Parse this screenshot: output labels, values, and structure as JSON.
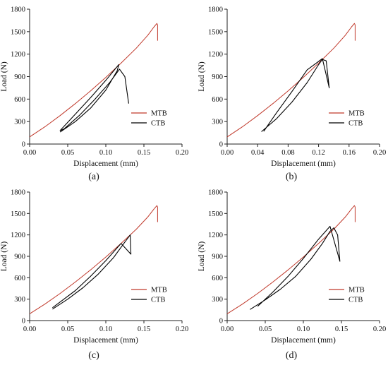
{
  "colors": {
    "MTB": "#c0392b",
    "CTB": "#000000"
  },
  "chart_data": [
    {
      "panel_label": "(a)",
      "type": "line",
      "xlabel": "Displacement (mm)",
      "ylabel": "Load (N)",
      "xlim": [
        0,
        0.2
      ],
      "ylim": [
        0,
        1800
      ],
      "x_ticks": [
        "0.00",
        "0.05",
        "0.10",
        "0.15",
        "0.20"
      ],
      "y_ticks": [
        "0",
        "300",
        "600",
        "900",
        "1200",
        "1500",
        "1800"
      ],
      "legend": {
        "position": "bottom-right",
        "entries": [
          "MTB",
          "CTB"
        ]
      },
      "series": [
        {
          "name": "MTB",
          "color": "#c0392b",
          "x": [
            0.0,
            0.02,
            0.04,
            0.06,
            0.08,
            0.1,
            0.12,
            0.14,
            0.155,
            0.163,
            0.167,
            0.168,
            0.168
          ],
          "y": [
            95,
            230,
            380,
            540,
            710,
            890,
            1080,
            1280,
            1450,
            1560,
            1610,
            1590,
            1380
          ]
        },
        {
          "name": "CTB",
          "color": "#000000",
          "x": [
            0.04,
            0.06,
            0.08,
            0.1,
            0.115,
            0.117,
            0.1,
            0.08,
            0.06,
            0.04,
            0.045,
            0.065,
            0.085,
            0.105,
            0.118,
            0.125,
            0.13
          ],
          "y": [
            160,
            300,
            480,
            720,
            980,
            1060,
            850,
            620,
            400,
            180,
            200,
            380,
            590,
            820,
            1000,
            900,
            540
          ]
        }
      ]
    },
    {
      "panel_label": "(b)",
      "type": "line",
      "xlabel": "Displacement (mm)",
      "ylabel": "Load (N)",
      "xlim": [
        0,
        0.2
      ],
      "ylim": [
        0,
        1800
      ],
      "x_ticks": [
        "0.00",
        "0.04",
        "0.08",
        "0.12",
        "0.16",
        "0.20"
      ],
      "y_ticks": [
        "0",
        "300",
        "600",
        "900",
        "1200",
        "1500",
        "1800"
      ],
      "legend": {
        "position": "bottom-right",
        "entries": [
          "MTB",
          "CTB"
        ]
      },
      "series": [
        {
          "name": "MTB",
          "color": "#c0392b",
          "x": [
            0.0,
            0.02,
            0.04,
            0.06,
            0.08,
            0.1,
            0.12,
            0.14,
            0.155,
            0.163,
            0.167,
            0.168,
            0.168
          ],
          "y": [
            95,
            230,
            380,
            540,
            710,
            890,
            1080,
            1280,
            1450,
            1560,
            1610,
            1590,
            1380
          ]
        },
        {
          "name": "CTB",
          "color": "#000000",
          "x": [
            0.045,
            0.065,
            0.085,
            0.105,
            0.12,
            0.125,
            0.13,
            0.134,
            0.125,
            0.105,
            0.085,
            0.065,
            0.048
          ],
          "y": [
            165,
            340,
            560,
            820,
            1060,
            1130,
            1110,
            750,
            1140,
            990,
            700,
            420,
            170
          ]
        }
      ]
    },
    {
      "panel_label": "(c)",
      "type": "line",
      "xlabel": "Displacement (mm)",
      "ylabel": "Load (N)",
      "xlim": [
        0,
        0.2
      ],
      "ylim": [
        0,
        1800
      ],
      "x_ticks": [
        "0.00",
        "0.05",
        "0.10",
        "0.15",
        "0.20"
      ],
      "y_ticks": [
        "0",
        "300",
        "600",
        "900",
        "1200",
        "1500",
        "1800"
      ],
      "legend": {
        "position": "bottom-right",
        "entries": [
          "MTB",
          "CTB"
        ]
      },
      "series": [
        {
          "name": "MTB",
          "color": "#c0392b",
          "x": [
            0.0,
            0.02,
            0.04,
            0.06,
            0.08,
            0.1,
            0.12,
            0.14,
            0.155,
            0.163,
            0.167,
            0.168,
            0.168
          ],
          "y": [
            95,
            230,
            380,
            540,
            710,
            890,
            1080,
            1280,
            1450,
            1560,
            1610,
            1590,
            1380
          ]
        },
        {
          "name": "CTB",
          "color": "#000000",
          "x": [
            0.03,
            0.05,
            0.07,
            0.09,
            0.11,
            0.125,
            0.132,
            0.133,
            0.12,
            0.1,
            0.08,
            0.06,
            0.04,
            0.03
          ],
          "y": [
            160,
            300,
            460,
            650,
            880,
            1100,
            1200,
            930,
            1080,
            840,
            620,
            420,
            260,
            180
          ]
        }
      ]
    },
    {
      "panel_label": "(d)",
      "type": "line",
      "xlabel": "Displacement (mm)",
      "ylabel": "Load (N)",
      "xlim": [
        0,
        0.2
      ],
      "ylim": [
        0,
        1800
      ],
      "x_ticks": [
        "0.00",
        "0.05",
        "0.10",
        "0.15",
        "0.20"
      ],
      "y_ticks": [
        "0",
        "300",
        "600",
        "900",
        "1200",
        "1500",
        "1800"
      ],
      "legend": {
        "position": "bottom-right",
        "entries": [
          "MTB",
          "CTB"
        ]
      },
      "series": [
        {
          "name": "MTB",
          "color": "#c0392b",
          "x": [
            0.0,
            0.02,
            0.04,
            0.06,
            0.08,
            0.1,
            0.12,
            0.14,
            0.155,
            0.163,
            0.167,
            0.168,
            0.168
          ],
          "y": [
            95,
            230,
            380,
            540,
            710,
            890,
            1080,
            1280,
            1450,
            1560,
            1610,
            1590,
            1380
          ]
        },
        {
          "name": "CTB",
          "color": "#000000",
          "x": [
            0.03,
            0.05,
            0.07,
            0.09,
            0.11,
            0.125,
            0.135,
            0.14,
            0.145,
            0.148,
            0.135,
            0.12,
            0.1,
            0.08,
            0.06,
            0.04
          ],
          "y": [
            155,
            290,
            440,
            620,
            860,
            1080,
            1250,
            1300,
            1200,
            830,
            1320,
            1140,
            870,
            620,
            400,
            200
          ]
        }
      ]
    }
  ]
}
